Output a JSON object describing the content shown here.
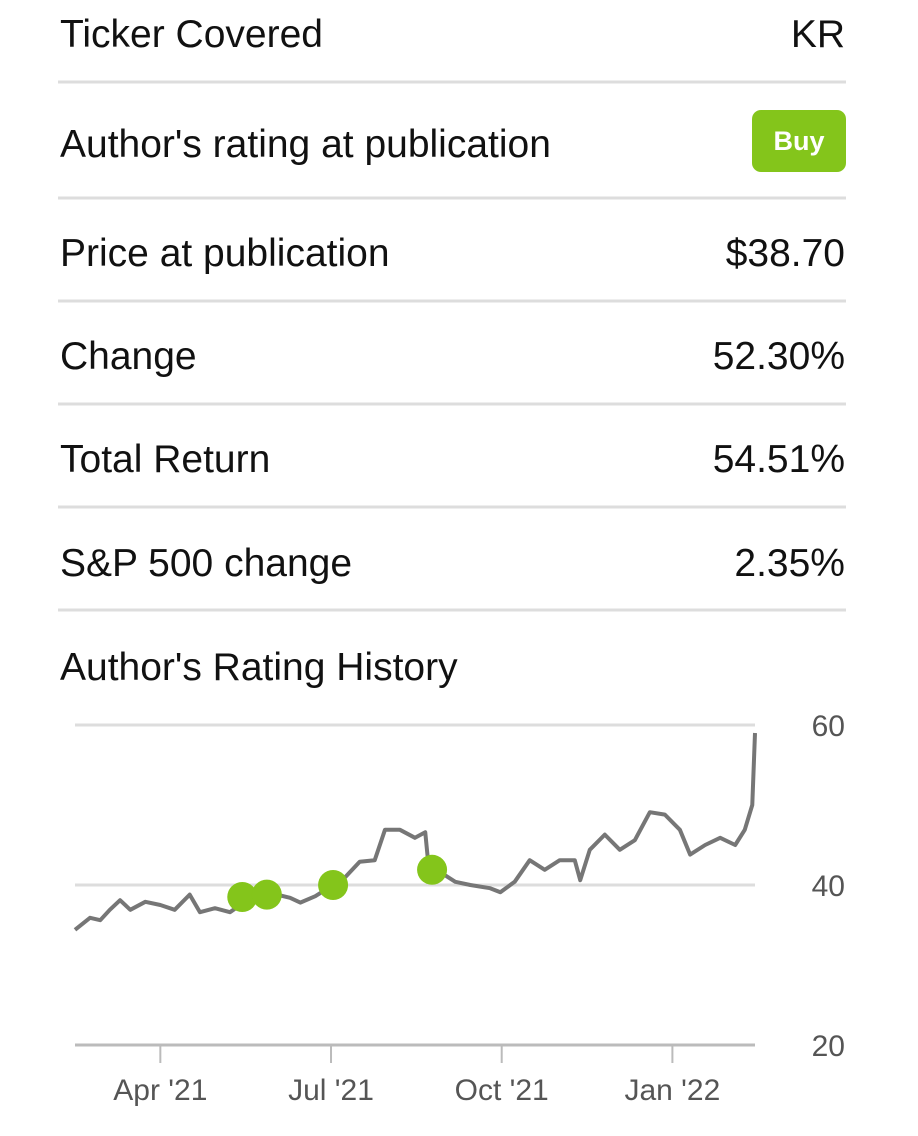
{
  "rows": [
    {
      "label": "Ticker Covered",
      "value": "KR"
    },
    {
      "label": "Author's rating at publication",
      "value": "Buy"
    },
    {
      "label": "Price at publication",
      "value": "$38.70"
    },
    {
      "label": "Change",
      "value": "52.30%"
    },
    {
      "label": "Total Return",
      "value": "54.51%"
    },
    {
      "label": "S&P 500 change",
      "value": "2.35%"
    }
  ],
  "chart_data": {
    "type": "line",
    "title": "Author's Rating History",
    "x": [
      2021.125,
      2021.147,
      2021.162,
      2021.176,
      2021.191,
      2021.206,
      2021.228,
      2021.25,
      2021.271,
      2021.293,
      2021.308,
      2021.33,
      2021.352,
      2021.389,
      2021.411,
      2021.44,
      2021.455,
      2021.477,
      2021.503,
      2021.52,
      2021.542,
      2021.564,
      2021.579,
      2021.601,
      2021.623,
      2021.638,
      2021.642,
      2021.66,
      2021.682,
      2021.704,
      2021.733,
      2021.748,
      2021.769,
      2021.791,
      2021.813,
      2021.835,
      2021.857,
      2021.865,
      2021.879,
      2021.901,
      2021.923,
      2021.945,
      2021.967,
      2021.989,
      2022.011,
      2022.026,
      2022.048,
      2022.07,
      2022.092,
      2022.106,
      2022.117,
      2022.121
    ],
    "series": [
      {
        "color": "#767676",
        "values": [
          34.4,
          35.9,
          35.6,
          36.9,
          38.1,
          36.9,
          37.9,
          37.5,
          36.9,
          38.8,
          36.6,
          37.1,
          36.6,
          38.8,
          39.0,
          38.4,
          37.8,
          38.6,
          40.0,
          40.9,
          42.9,
          43.1,
          46.9,
          46.9,
          45.9,
          46.6,
          43.1,
          41.6,
          40.4,
          40.0,
          39.6,
          39.1,
          40.4,
          43.1,
          41.9,
          43.1,
          43.1,
          40.6,
          44.4,
          46.3,
          44.4,
          45.6,
          49.1,
          48.8,
          46.9,
          43.8,
          45.0,
          45.9,
          45.0,
          46.9,
          50.0,
          59.0
        ]
      }
    ],
    "rating_points": {
      "color": "#84c51b",
      "x": [
        2021.37,
        2021.406,
        2021.503,
        2021.648
      ],
      "values": [
        38.5,
        38.8,
        40.0,
        41.9
      ]
    },
    "xlim": [
      2021.125,
      2022.121
    ],
    "xticks": [
      {
        "value": 2021.25,
        "label": "Apr '21"
      },
      {
        "value": 2021.5,
        "label": "Jul '21"
      },
      {
        "value": 2021.75,
        "label": "Oct '21"
      },
      {
        "value": 2022.0,
        "label": "Jan '22"
      }
    ],
    "ylim": [
      20,
      60
    ],
    "yticks": [
      20,
      40,
      60
    ],
    "grid": true
  }
}
